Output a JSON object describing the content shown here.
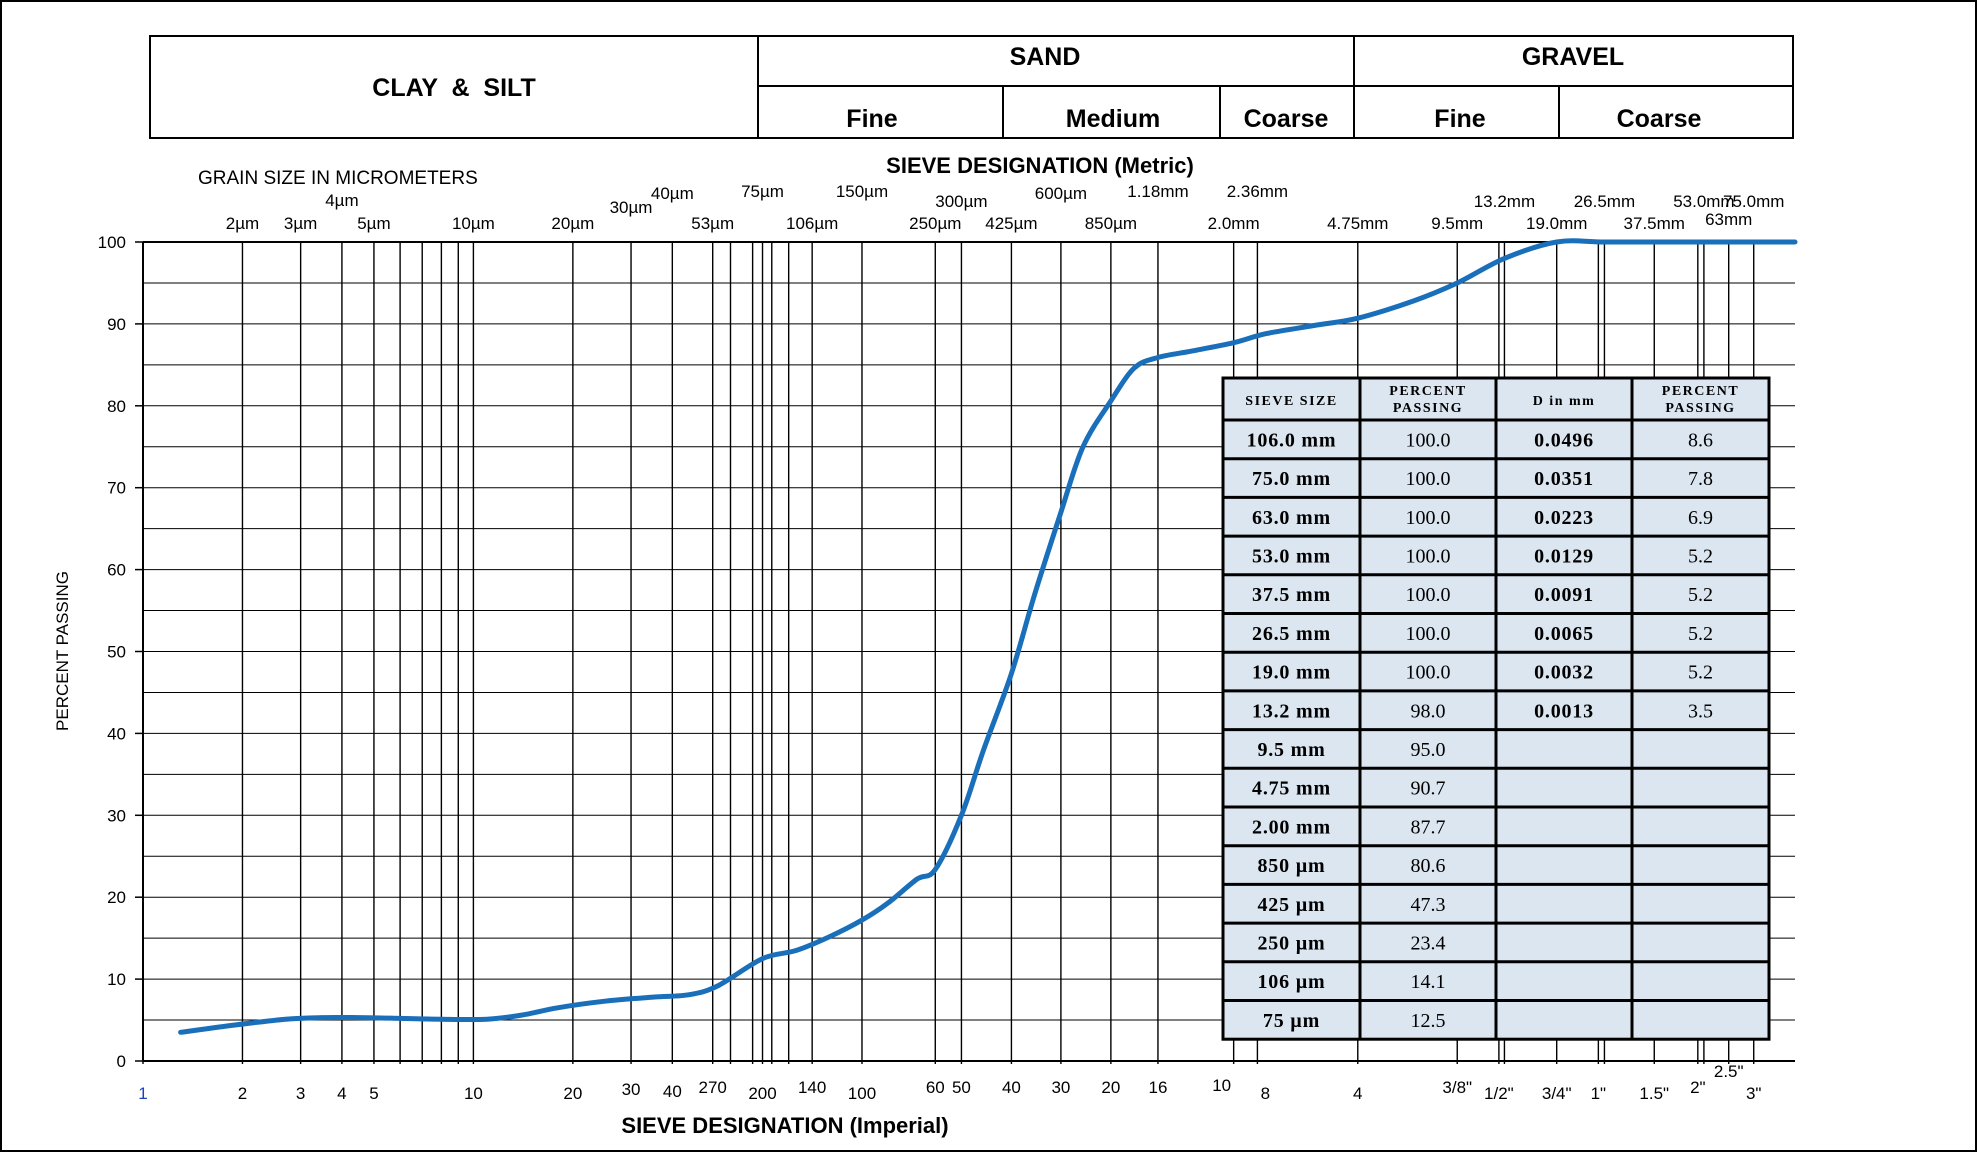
{
  "header": {
    "clay_silt": "CLAY  &  SILT",
    "sand": "SAND",
    "gravel": "GRAVEL",
    "sand_fine": "Fine",
    "sand_medium": "Medium",
    "sand_coarse": "Coarse",
    "gravel_fine": "Fine",
    "gravel_coarse": "Coarse"
  },
  "labels": {
    "grain_size": "GRAIN SIZE IN MICROMETERS",
    "sieve_metric": "SIEVE DESIGNATION (Metric)",
    "sieve_imperial": "SIEVE DESIGNATION (Imperial)",
    "ylabel": "PERCENT PASSING"
  },
  "colors": {
    "curve": "#1a6fba",
    "table_fill": "#dce6f1",
    "x_start_label": "#1f3fbf"
  },
  "chart_data": {
    "type": "line",
    "x_scale": "log",
    "xlim_um": [
      1,
      100000
    ],
    "ylim": [
      0,
      100
    ],
    "y_ticks": [
      0,
      10,
      20,
      30,
      40,
      50,
      60,
      70,
      80,
      90,
      100
    ],
    "grid": true,
    "micrometer_ticks": [
      {
        "label": "2µm",
        "um": 2
      },
      {
        "label": "3µm",
        "um": 3
      },
      {
        "label": "4µm",
        "um": 4
      },
      {
        "label": "5µm",
        "um": 5
      },
      {
        "label": "10µm",
        "um": 10
      },
      {
        "label": "20µm",
        "um": 20
      },
      {
        "label": "30µm",
        "um": 30
      },
      {
        "label": "40µm",
        "um": 40
      },
      {
        "label": "53µm",
        "um": 53
      }
    ],
    "metric_sieves": [
      {
        "label": "75µm",
        "um": 75
      },
      {
        "label": "106µm",
        "um": 106
      },
      {
        "label": "150µm",
        "um": 150
      },
      {
        "label": "250µm",
        "um": 250
      },
      {
        "label": "300µm",
        "um": 300
      },
      {
        "label": "425µm",
        "um": 425
      },
      {
        "label": "600µm",
        "um": 600
      },
      {
        "label": "850µm",
        "um": 850
      },
      {
        "label": "1.18mm",
        "um": 1180
      },
      {
        "label": "2.0mm",
        "um": 2000
      },
      {
        "label": "2.36mm",
        "um": 2360
      },
      {
        "label": "4.75mm",
        "um": 4750
      },
      {
        "label": "9.5mm",
        "um": 9500
      },
      {
        "label": "13.2mm",
        "um": 13200
      },
      {
        "label": "19.0mm",
        "um": 19000
      },
      {
        "label": "26.5mm",
        "um": 26500
      },
      {
        "label": "37.5mm",
        "um": 37500
      },
      {
        "label": "53.0mm",
        "um": 53000
      },
      {
        "label": "63mm",
        "um": 63000
      },
      {
        "label": "75.0mm",
        "um": 75000
      }
    ],
    "imperial_sieves": [
      {
        "label": "1",
        "um": 1
      },
      {
        "label": "2",
        "um": 2
      },
      {
        "label": "3",
        "um": 3
      },
      {
        "label": "4",
        "um": 4
      },
      {
        "label": "5",
        "um": 5
      },
      {
        "label": "10",
        "um": 10
      },
      {
        "label": "20",
        "um": 20
      },
      {
        "label": "30",
        "um": 30
      },
      {
        "label": "40",
        "um": 40
      },
      {
        "label": "270",
        "um": 53
      },
      {
        "label": "200",
        "um": 75
      },
      {
        "label": "140",
        "um": 106
      },
      {
        "label": "100",
        "um": 150
      },
      {
        "label": "60",
        "um": 250
      },
      {
        "label": "50",
        "um": 300
      },
      {
        "label": "40",
        "um": 425
      },
      {
        "label": "30",
        "um": 600
      },
      {
        "label": "20",
        "um": 850
      },
      {
        "label": "16",
        "um": 1180
      },
      {
        "label": "10",
        "um": 2000
      },
      {
        "label": "8",
        "um": 2360
      },
      {
        "label": "4",
        "um": 4750
      },
      {
        "label": "3/8\"",
        "um": 9500
      },
      {
        "label": "1/2\"",
        "um": 12700
      },
      {
        "label": "3/4\"",
        "um": 19000
      },
      {
        "label": "1\"",
        "um": 25400
      },
      {
        "label": "1.5\"",
        "um": 37500
      },
      {
        "label": "2\"",
        "um": 50800
      },
      {
        "label": "2.5\"",
        "um": 63000
      },
      {
        "label": "3\"",
        "um": 75000
      }
    ],
    "series": [
      {
        "x_um": [
          1.3,
          1.9,
          2.7,
          3.5,
          4.5,
          6,
          8,
          11,
          14,
          18,
          25,
          35,
          45,
          55,
          75,
          95,
          120,
          150,
          180,
          220,
          250,
          300,
          350,
          425,
          500,
          600,
          700,
          850,
          1000,
          1180,
          1500,
          2000,
          2500,
          3500,
          4750,
          7000,
          9500,
          13200,
          19000,
          26500,
          40000,
          75000,
          106000
        ],
        "y": [
          3.5,
          4.4,
          5.1,
          5.3,
          5.3,
          5.2,
          5.1,
          5.1,
          5.6,
          6.5,
          7.3,
          7.8,
          8.1,
          9.2,
          12.5,
          13.5,
          15.2,
          17.2,
          19.3,
          22.2,
          23.4,
          30.0,
          38.0,
          47.3,
          57.0,
          67.0,
          75.0,
          80.6,
          84.6,
          85.9,
          86.7,
          87.7,
          88.8,
          89.8,
          90.7,
          92.8,
          95.0,
          98.0,
          100,
          100,
          100,
          100,
          100
        ]
      }
    ]
  },
  "table": {
    "headers": [
      "SIEVE SIZE",
      "PERCENT PASSING",
      "D in mm",
      "PERCENT PASSING"
    ],
    "rows": [
      [
        "106.0 mm",
        "100.0",
        "0.0496",
        "8.6"
      ],
      [
        "75.0 mm",
        "100.0",
        "0.0351",
        "7.8"
      ],
      [
        "63.0 mm",
        "100.0",
        "0.0223",
        "6.9"
      ],
      [
        "53.0 mm",
        "100.0",
        "0.0129",
        "5.2"
      ],
      [
        "37.5 mm",
        "100.0",
        "0.0091",
        "5.2"
      ],
      [
        "26.5 mm",
        "100.0",
        "0.0065",
        "5.2"
      ],
      [
        "19.0 mm",
        "100.0",
        "0.0032",
        "5.2"
      ],
      [
        "13.2 mm",
        "98.0",
        "0.0013",
        "3.5"
      ],
      [
        "9.5 mm",
        "95.0",
        "",
        ""
      ],
      [
        "4.75 mm",
        "90.7",
        "",
        ""
      ],
      [
        "2.00 mm",
        "87.7",
        "",
        ""
      ],
      [
        "850 µm",
        "80.6",
        "",
        ""
      ],
      [
        "425 µm",
        "47.3",
        "",
        ""
      ],
      [
        "250 µm",
        "23.4",
        "",
        ""
      ],
      [
        "106 µm",
        "14.1",
        "",
        ""
      ],
      [
        "75 µm",
        "12.5",
        "",
        ""
      ]
    ]
  }
}
